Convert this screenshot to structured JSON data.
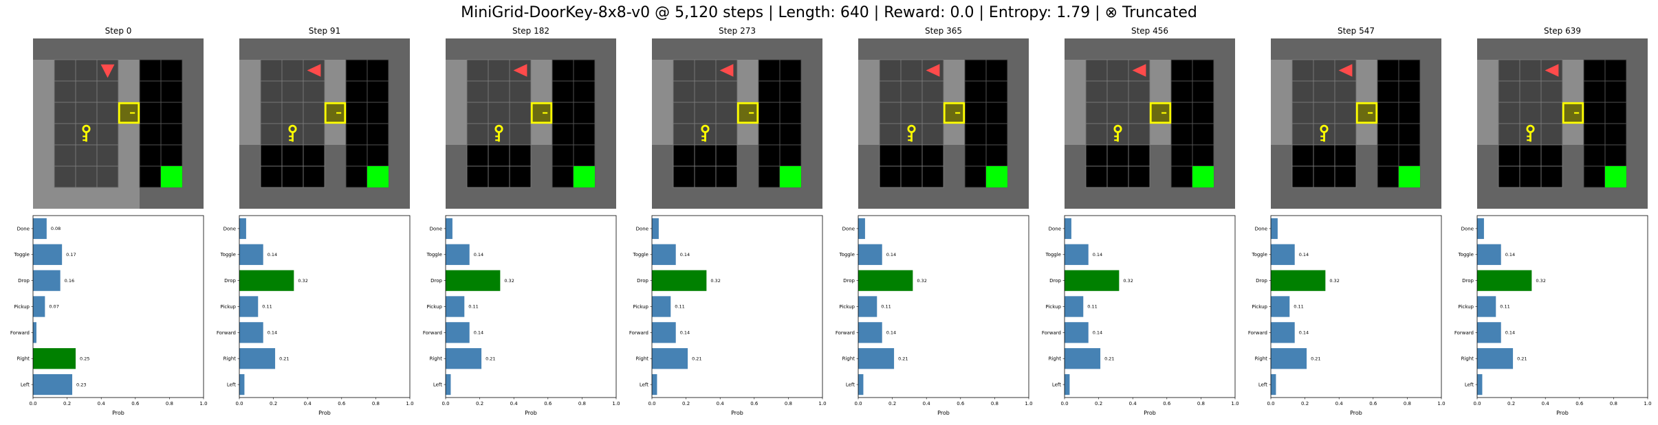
{
  "figure": {
    "title": "MiniGrid-DoorKey-8x8-v0 @ 5,120 steps | Length: 640 | Reward: 0.0 | Entropy: 1.79 | ⊗ Truncated"
  },
  "colors": {
    "bar": "#4682b4",
    "selected_bar": "#008000",
    "wall": "#646464",
    "floor": "#444444",
    "unseen": "#000000",
    "highlight": "#8c8c8c",
    "goal": "#00ff00",
    "door": "#ffff00",
    "door_fill": "#6b6b10",
    "key": "#ffff00",
    "agent": "#ff4b4b"
  },
  "icons": [
    "agent-triangle-icon",
    "key-icon",
    "locked-door-icon",
    "goal-square-icon"
  ],
  "chart_data": [
    {
      "type": "bar",
      "orientation": "horizontal",
      "title": "Step 0",
      "categories": [
        "Left",
        "Right",
        "Forward",
        "Pickup",
        "Drop",
        "Toggle",
        "Done"
      ],
      "values": [
        0.23,
        0.25,
        0.02,
        0.07,
        0.16,
        0.17,
        0.08
      ],
      "value_labels": [
        "0.23",
        "0.25",
        "",
        "0.07",
        "0.16",
        "0.17",
        "0.08"
      ],
      "selected": "Right",
      "xlabel": "Prob",
      "xlim": [
        0,
        1
      ],
      "xticks": [
        "0.0",
        "0.2",
        "0.4",
        "0.6",
        "0.8",
        "1.0"
      ],
      "agent_dir": "down"
    },
    {
      "type": "bar",
      "orientation": "horizontal",
      "title": "Step 91",
      "categories": [
        "Left",
        "Right",
        "Forward",
        "Pickup",
        "Drop",
        "Toggle",
        "Done"
      ],
      "values": [
        0.03,
        0.21,
        0.14,
        0.11,
        0.32,
        0.14,
        0.04
      ],
      "value_labels": [
        "",
        "0.21",
        "0.14",
        "0.11",
        "0.32",
        "0.14",
        ""
      ],
      "selected": "Drop",
      "xlabel": "Prob",
      "xlim": [
        0,
        1
      ],
      "xticks": [
        "0.0",
        "0.2",
        "0.4",
        "0.6",
        "0.8",
        "1.0"
      ],
      "agent_dir": "left"
    },
    {
      "type": "bar",
      "orientation": "horizontal",
      "title": "Step 182",
      "categories": [
        "Left",
        "Right",
        "Forward",
        "Pickup",
        "Drop",
        "Toggle",
        "Done"
      ],
      "values": [
        0.03,
        0.21,
        0.14,
        0.11,
        0.32,
        0.14,
        0.04
      ],
      "value_labels": [
        "",
        "0.21",
        "0.14",
        "0.11",
        "0.32",
        "0.14",
        ""
      ],
      "selected": "Drop",
      "xlabel": "Prob",
      "xlim": [
        0,
        1
      ],
      "xticks": [
        "0.0",
        "0.2",
        "0.4",
        "0.6",
        "0.8",
        "1.0"
      ],
      "agent_dir": "left"
    },
    {
      "type": "bar",
      "orientation": "horizontal",
      "title": "Step 273",
      "categories": [
        "Left",
        "Right",
        "Forward",
        "Pickup",
        "Drop",
        "Toggle",
        "Done"
      ],
      "values": [
        0.03,
        0.21,
        0.14,
        0.11,
        0.32,
        0.14,
        0.04
      ],
      "value_labels": [
        "",
        "0.21",
        "0.14",
        "0.11",
        "0.32",
        "0.14",
        ""
      ],
      "selected": "Drop",
      "xlabel": "Prob",
      "xlim": [
        0,
        1
      ],
      "xticks": [
        "0.0",
        "0.2",
        "0.4",
        "0.6",
        "0.8",
        "1.0"
      ],
      "agent_dir": "left"
    },
    {
      "type": "bar",
      "orientation": "horizontal",
      "title": "Step 365",
      "categories": [
        "Left",
        "Right",
        "Forward",
        "Pickup",
        "Drop",
        "Toggle",
        "Done"
      ],
      "values": [
        0.03,
        0.21,
        0.14,
        0.11,
        0.32,
        0.14,
        0.04
      ],
      "value_labels": [
        "",
        "0.21",
        "0.14",
        "0.11",
        "0.32",
        "0.14",
        ""
      ],
      "selected": "Drop",
      "xlabel": "Prob",
      "xlim": [
        0,
        1
      ],
      "xticks": [
        "0.0",
        "0.2",
        "0.4",
        "0.6",
        "0.8",
        "1.0"
      ],
      "agent_dir": "left"
    },
    {
      "type": "bar",
      "orientation": "horizontal",
      "title": "Step 456",
      "categories": [
        "Left",
        "Right",
        "Forward",
        "Pickup",
        "Drop",
        "Toggle",
        "Done"
      ],
      "values": [
        0.03,
        0.21,
        0.14,
        0.11,
        0.32,
        0.14,
        0.04
      ],
      "value_labels": [
        "",
        "0.21",
        "0.14",
        "0.11",
        "0.32",
        "0.14",
        ""
      ],
      "selected": "Drop",
      "xlabel": "Prob",
      "xlim": [
        0,
        1
      ],
      "xticks": [
        "0.0",
        "0.2",
        "0.4",
        "0.6",
        "0.8",
        "1.0"
      ],
      "agent_dir": "left"
    },
    {
      "type": "bar",
      "orientation": "horizontal",
      "title": "Step 547",
      "categories": [
        "Left",
        "Right",
        "Forward",
        "Pickup",
        "Drop",
        "Toggle",
        "Done"
      ],
      "values": [
        0.03,
        0.21,
        0.14,
        0.11,
        0.32,
        0.14,
        0.04
      ],
      "value_labels": [
        "",
        "0.21",
        "0.14",
        "0.11",
        "0.32",
        "0.14",
        ""
      ],
      "selected": "Drop",
      "xlabel": "Prob",
      "xlim": [
        0,
        1
      ],
      "xticks": [
        "0.0",
        "0.2",
        "0.4",
        "0.6",
        "0.8",
        "1.0"
      ],
      "agent_dir": "left"
    },
    {
      "type": "bar",
      "orientation": "horizontal",
      "title": "Step 639",
      "categories": [
        "Left",
        "Right",
        "Forward",
        "Pickup",
        "Drop",
        "Toggle",
        "Done"
      ],
      "values": [
        0.03,
        0.21,
        0.14,
        0.11,
        0.32,
        0.14,
        0.04
      ],
      "value_labels": [
        "",
        "0.21",
        "0.14",
        "0.11",
        "0.32",
        "0.14",
        ""
      ],
      "selected": "Drop",
      "xlabel": "Prob",
      "xlim": [
        0,
        1
      ],
      "xticks": [
        "0.0",
        "0.2",
        "0.4",
        "0.6",
        "0.8",
        "1.0"
      ],
      "agent_dir": "left"
    }
  ]
}
